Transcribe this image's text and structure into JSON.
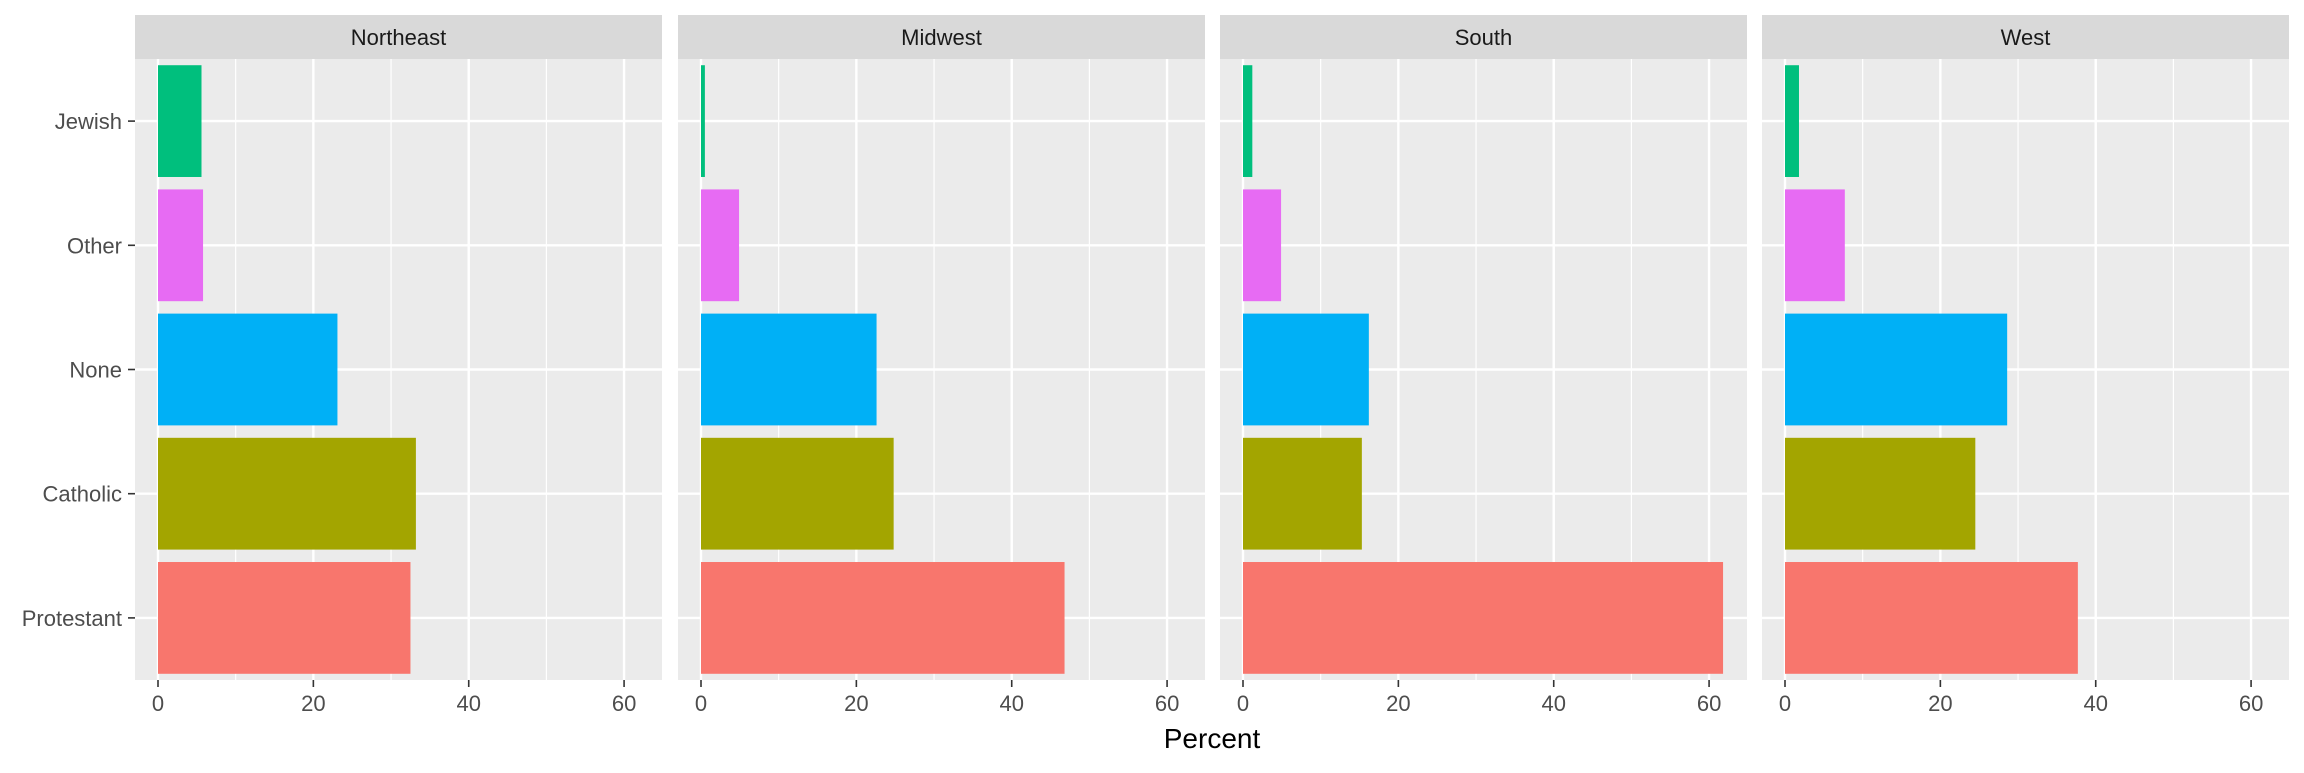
{
  "chart_data": {
    "type": "bar",
    "orientation": "horizontal",
    "facet_by": "region",
    "xlabel": "Percent",
    "ylabel": "",
    "xlim": [
      0,
      65
    ],
    "x_ticks": [
      0,
      20,
      40,
      60
    ],
    "categories": [
      "Protestant",
      "Catholic",
      "None",
      "Other",
      "Jewish"
    ],
    "colors": {
      "Protestant": "#F8766D",
      "Catholic": "#A3A500",
      "None": "#00B0F6",
      "Other": "#E76BF3",
      "Jewish": "#00BF7D"
    },
    "grid": true,
    "legend": "none",
    "panels": [
      {
        "name": "Northeast",
        "values": [
          32.5,
          33.2,
          23.1,
          5.8,
          5.6
        ]
      },
      {
        "name": "Midwest",
        "values": [
          46.8,
          24.8,
          22.6,
          4.9,
          0.5
        ]
      },
      {
        "name": "South",
        "values": [
          61.8,
          15.3,
          16.2,
          4.9,
          1.2
        ]
      },
      {
        "name": "West",
        "values": [
          37.7,
          24.5,
          28.6,
          7.7,
          1.8
        ]
      }
    ]
  }
}
